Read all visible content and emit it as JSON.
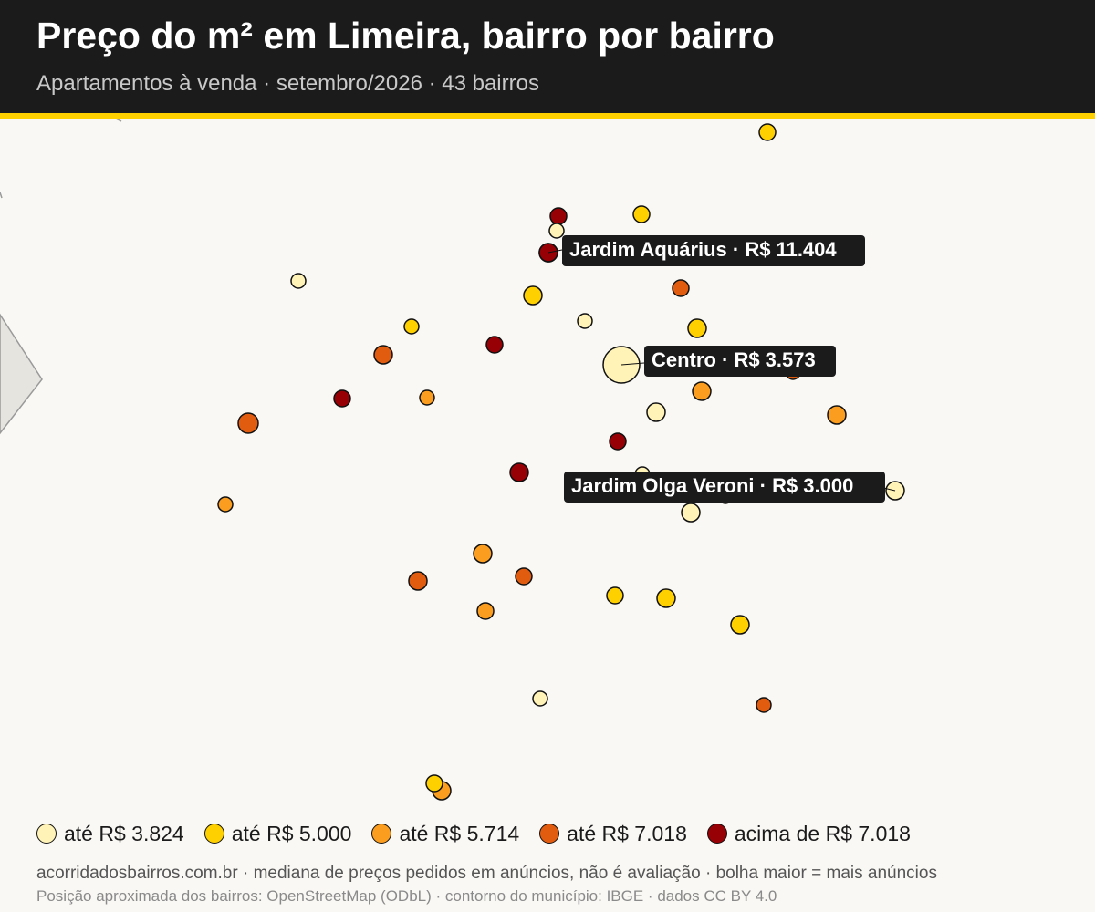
{
  "header": {
    "title": "Preço do m² em Limeira, bairro por bairro",
    "subtitle": "Apartamentos à venda · setembro/2026 · 43 bairros"
  },
  "colors": {
    "header_bg": "#1b1b1b",
    "accent": "#ffd000",
    "background": "#faf8f4",
    "tier_1": "#fff3b8",
    "tier_2": "#ffd000",
    "tier_3": "#fb9d1f",
    "tier_4": "#e25c10",
    "tier_5": "#970005",
    "label_bg": "#1b1b1b"
  },
  "legend": [
    {
      "label": "até R$ 3.824",
      "tier": 1
    },
    {
      "label": "até R$ 5.000",
      "tier": 2
    },
    {
      "label": "até R$ 5.714",
      "tier": 3
    },
    {
      "label": "até R$ 7.018",
      "tier": 4
    },
    {
      "label": "acima de R$ 7.018",
      "tier": 5
    }
  ],
  "callouts": [
    {
      "label": "Jardim Aquárius · R$ 11.404",
      "tier": 5
    },
    {
      "label": "Centro · R$ 3.573",
      "tier": 1
    },
    {
      "label": "Jardim Olga Veroni · R$ 3.000",
      "tier": 1
    }
  ],
  "footer": {
    "line1": "acorridadosbairros.com.br · mediana de preços pedidos em anúncios, não é avaliação · bolha maior = mais anúncios",
    "line2": "Posição aproximada dos bairros: OpenStreetMap (ODbL) · contorno do município: IBGE · dados CC BY 4.0"
  }
}
